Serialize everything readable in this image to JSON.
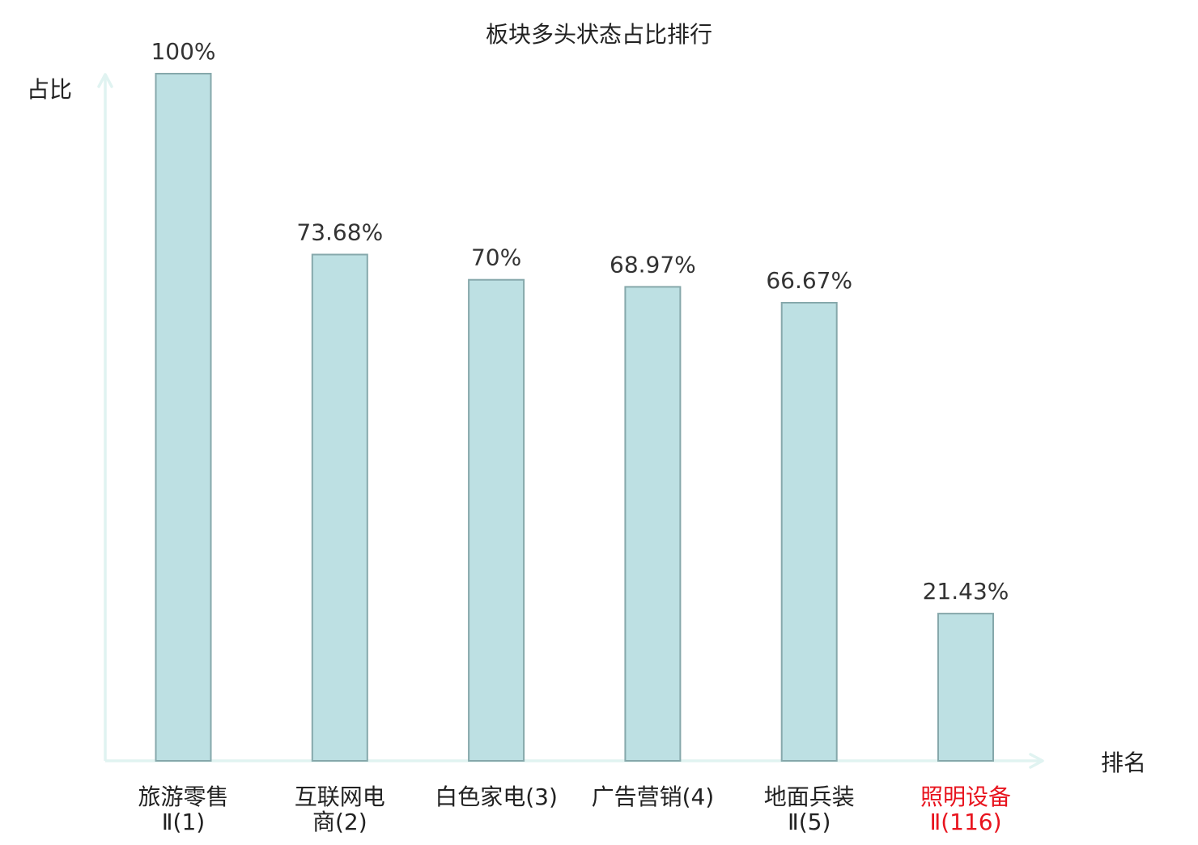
{
  "chart_data": {
    "type": "bar",
    "title": "板块多头状态占比排行",
    "ylabel": "占比",
    "xlabel": "排名",
    "ylim": [
      0,
      100
    ],
    "grid": false,
    "legend": "none",
    "categories": [
      {
        "lines": [
          "旅游零售",
          "Ⅱ(1)"
        ],
        "highlight": false
      },
      {
        "lines": [
          "互联网电",
          "商(2)"
        ],
        "highlight": false
      },
      {
        "lines": [
          "白色家电(3)"
        ],
        "highlight": false
      },
      {
        "lines": [
          "广告营销(4)"
        ],
        "highlight": false
      },
      {
        "lines": [
          "地面兵装",
          "Ⅱ(5)"
        ],
        "highlight": false
      },
      {
        "lines": [
          "照明设备",
          "Ⅱ(116)"
        ],
        "highlight": true
      }
    ],
    "values": [
      100,
      73.68,
      70,
      68.97,
      66.67,
      21.43
    ],
    "value_labels": [
      "100%",
      "73.68%",
      "70%",
      "68.97%",
      "66.67%",
      "21.43%"
    ],
    "colors": {
      "bar_fill": "#bde0e3",
      "bar_stroke": "#86a8ab",
      "axis": "#e0f3f1",
      "text": "#333333",
      "highlight": "#e8141e"
    }
  }
}
